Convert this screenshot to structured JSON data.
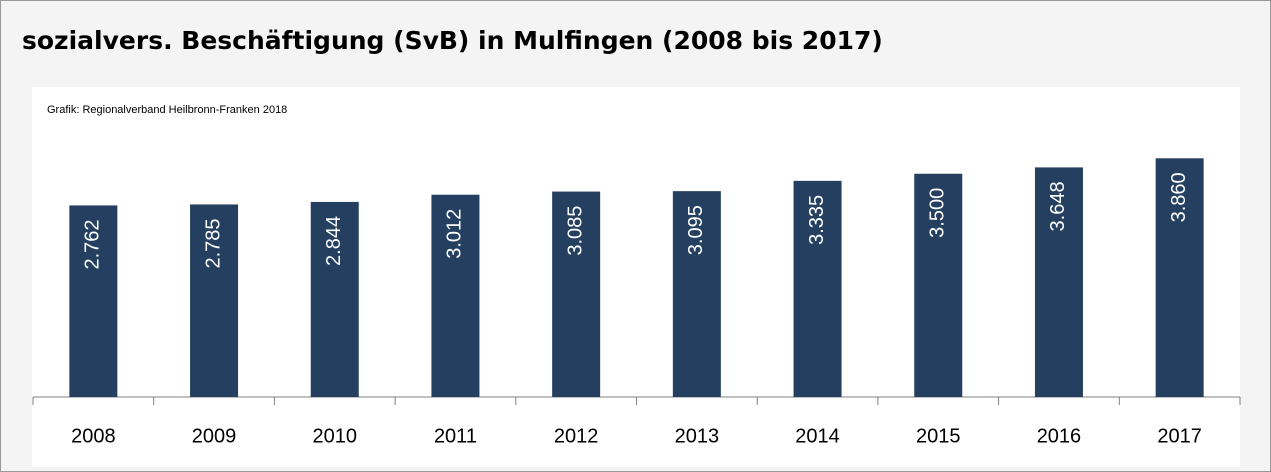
{
  "chart_data": {
    "type": "bar",
    "title": "sozialvers. Beschäftigung (SvB) in Mulfingen (2008 bis 2017)",
    "subtitle": "Grafik: Regionalverband Heilbronn-Franken 2018",
    "categories": [
      "2008",
      "2009",
      "2010",
      "2011",
      "2012",
      "2013",
      "2014",
      "2015",
      "2016",
      "2017"
    ],
    "values": [
      2762,
      2785,
      2844,
      3012,
      3085,
      3095,
      3335,
      3500,
      3648,
      3860
    ],
    "value_labels": [
      "2.762",
      "2.785",
      "2.844",
      "3.012",
      "3.085",
      "3.095",
      "3.335",
      "3.500",
      "3.648",
      "3.860"
    ],
    "color": "#243f60",
    "ylim": [
      -1700,
      4100
    ]
  }
}
